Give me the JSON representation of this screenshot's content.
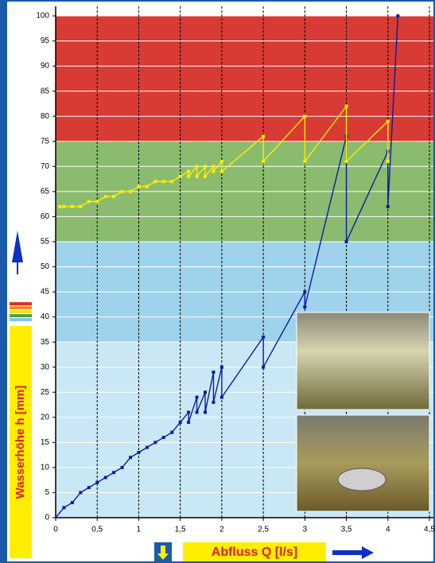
{
  "chart_data": {
    "type": "line",
    "y_label": "Wasserhöhe h [mm]",
    "x_label": "Abfluss Q [l/s]",
    "xlim": [
      0,
      4.5
    ],
    "ylim": [
      0,
      100
    ],
    "xticks": [
      0,
      {
        "value": 0.5,
        "label": "0,5"
      },
      1,
      {
        "value": 1.5,
        "label": "1,5"
      },
      2,
      {
        "value": 2.5,
        "label": "2,5"
      },
      3,
      {
        "value": 3.5,
        "label": "3,5"
      },
      4,
      {
        "value": 4.5,
        "label": "4,5"
      }
    ],
    "yticks": [
      0,
      5,
      10,
      15,
      20,
      25,
      30,
      35,
      40,
      45,
      50,
      55,
      60,
      65,
      70,
      75,
      80,
      85,
      90,
      95,
      100
    ],
    "grid": true,
    "bands": [
      {
        "from": 75,
        "to": 100,
        "color": "#d83a34"
      },
      {
        "from": 55,
        "to": 75,
        "color": "#8bbb6e"
      },
      {
        "from": 35,
        "to": 55,
        "color": "#9fd3ec"
      },
      {
        "from": 0,
        "to": 35,
        "color": "#c9e7f5"
      }
    ],
    "series": [
      {
        "color": "#0a1fa0",
        "x": [
          0,
          0.1,
          0.2,
          0.3,
          0.4,
          0.5,
          0.6,
          0.7,
          0.8,
          0.9,
          1.0,
          1.1,
          1.2,
          1.3,
          1.4,
          1.5,
          1.6,
          1.6,
          1.7,
          1.7,
          1.8,
          1.8,
          1.9,
          1.9,
          2.0,
          2.0,
          2.5,
          2.5,
          3.0,
          3.0,
          3.5,
          3.5,
          4.0,
          4.0,
          4.12
        ],
        "values": [
          0,
          2,
          3,
          5,
          6,
          7,
          8,
          9,
          10,
          12,
          13,
          14,
          15,
          16,
          17,
          19,
          21,
          19,
          24,
          21,
          25,
          21,
          29,
          23,
          30,
          24,
          36,
          30,
          45,
          42,
          76,
          55,
          73,
          62,
          100
        ]
      },
      {
        "color": "#ffee00",
        "x": [
          0.05,
          0.1,
          0.2,
          0.3,
          0.4,
          0.5,
          0.6,
          0.7,
          0.8,
          0.9,
          1.0,
          1.1,
          1.2,
          1.3,
          1.4,
          1.5,
          1.6,
          1.6,
          1.7,
          1.7,
          1.8,
          1.8,
          1.9,
          1.9,
          2.0,
          2.0,
          2.5,
          2.5,
          3.0,
          3.0,
          3.5,
          3.5,
          4.0,
          4.0
        ],
        "values": [
          62,
          62,
          62,
          62,
          63,
          63,
          64,
          64,
          65,
          65,
          66,
          66,
          67,
          67,
          67,
          68,
          69,
          68,
          70,
          68,
          70,
          68,
          70,
          69,
          71,
          69,
          76,
          71,
          80,
          71,
          82,
          71,
          79,
          71
        ]
      }
    ]
  }
}
